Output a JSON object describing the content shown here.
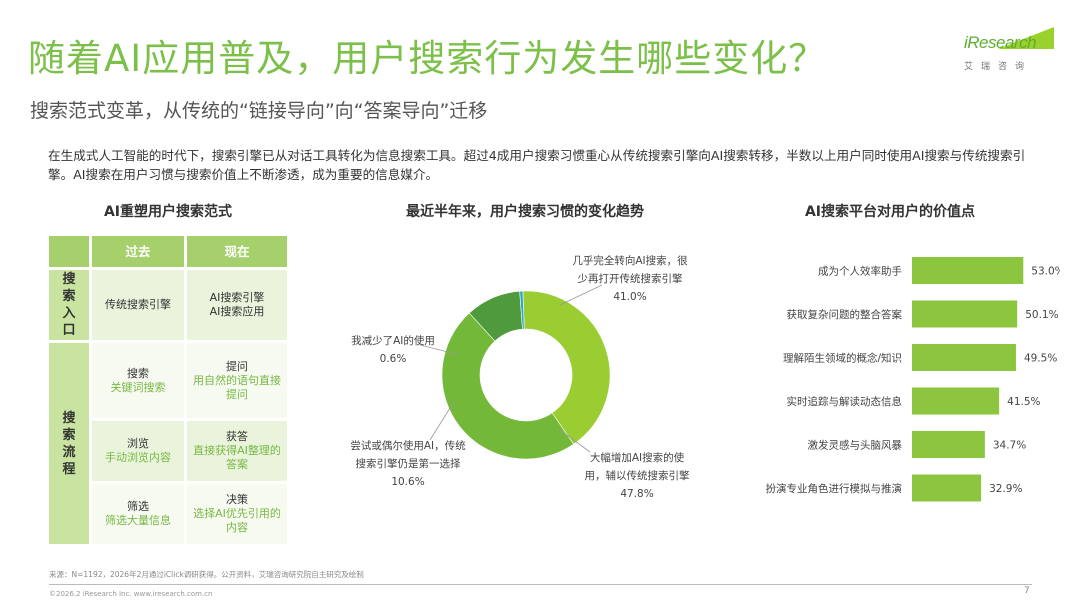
{
  "header": {
    "title": "随着AI应用普及，用户搜索行为发生哪些变化？",
    "subtitle": "搜索范式变革，从传统的“链接导向”向“答案导向”迁移",
    "logo_text": "iResearch",
    "logo_sub": "艾瑞咨询"
  },
  "intro": "在生成式人工智能的时代下，搜索引擎已从对话工具转化为信息搜索工具。超过4成用户搜索习惯重心从传统搜索引擎向AI搜索转移，半数以上用户同时使用AI搜索与传统搜索引擎。AI搜索在用户习惯与搜索价值上不断渗透，成为重要的信息媒介。",
  "sections": {
    "table_title": "AI重塑用户搜索范式",
    "donut_title": "最近半年来，用户搜索习惯的变化趋势",
    "bars_title": "AI搜索平台对用户的价值点"
  },
  "table": {
    "col_past": "过去",
    "col_now": "现在",
    "side_entry": [
      "搜",
      "索",
      "入",
      "口"
    ],
    "side_flow": [
      "搜",
      "索",
      "流",
      "程"
    ],
    "entry_past": "传统搜索引擎",
    "entry_now_1": "AI搜索引擎",
    "entry_now_2": "AI搜索应用",
    "rows": [
      {
        "past_k": "搜索",
        "past_g": "关键词搜索",
        "now_k": "提问",
        "now_g": "用自然的语句直接提问"
      },
      {
        "past_k": "浏览",
        "past_g": "手动浏览内容",
        "now_k": "获答",
        "now_g": "直接获得AI整理的答案"
      },
      {
        "past_k": "筛选",
        "past_g": "筛选大量信息",
        "now_k": "决策",
        "now_g": "选择AI优先引用的内容"
      }
    ]
  },
  "chart_data": [
    {
      "type": "pie",
      "title": "最近半年来，用户搜索习惯的变化趋势",
      "slices": [
        {
          "label": "几乎完全转向AI搜索，很少再打开传统搜索引擎",
          "value": 41.0,
          "color": "#9acd32"
        },
        {
          "label": "大幅增加AI搜索的使用，辅以传统搜索引擎",
          "value": 47.8,
          "color": "#74b83a"
        },
        {
          "label": "尝试或偶尔使用AI，传统搜索引擎仍是第一选择",
          "value": 10.6,
          "color": "#4e9a3c"
        },
        {
          "label": "我减少了AI的使用",
          "value": 0.6,
          "color": "#27a8c4"
        }
      ],
      "labels": {
        "a1": "几乎完全转向AI搜索，很",
        "a2": "少再打开传统搜索引擎",
        "a3": "41.0%",
        "b1": "大幅增加AI搜索的使",
        "b2": "用，辅以传统搜索引擎",
        "b3": "47.8%",
        "c1": "尝试或偶尔使用AI，传统",
        "c2": "搜索引擎仍是第一选择",
        "c3": "10.6%",
        "d1": "我减少了AI的使用",
        "d2": "0.6%"
      }
    },
    {
      "type": "bar",
      "orientation": "horizontal",
      "title": "AI搜索平台对用户的价值点",
      "categories": [
        "成为个人效率助手",
        "获取复杂问题的整合答案",
        "理解陌生领域的概念/知识",
        "实时追踪与解读动态信息",
        "激发灵感与头脑风暴",
        "扮演专业角色进行模拟与推演"
      ],
      "values": [
        53.0,
        50.1,
        49.5,
        41.5,
        34.7,
        32.9
      ],
      "value_labels": [
        "53.0%",
        "50.1%",
        "49.5%",
        "41.5%",
        "34.7%",
        "32.9%"
      ],
      "color": "#8cc63e",
      "xlim": [
        0,
        60
      ]
    }
  ],
  "footer": {
    "source": "来源：N=1192，2026年2月通过iClick调研获得。公开资料，艾瑞咨询研究院自主研究及绘制",
    "copyright": "©2026.2 iResearch Inc.  www.iresearch.com.cn",
    "page": "7"
  }
}
